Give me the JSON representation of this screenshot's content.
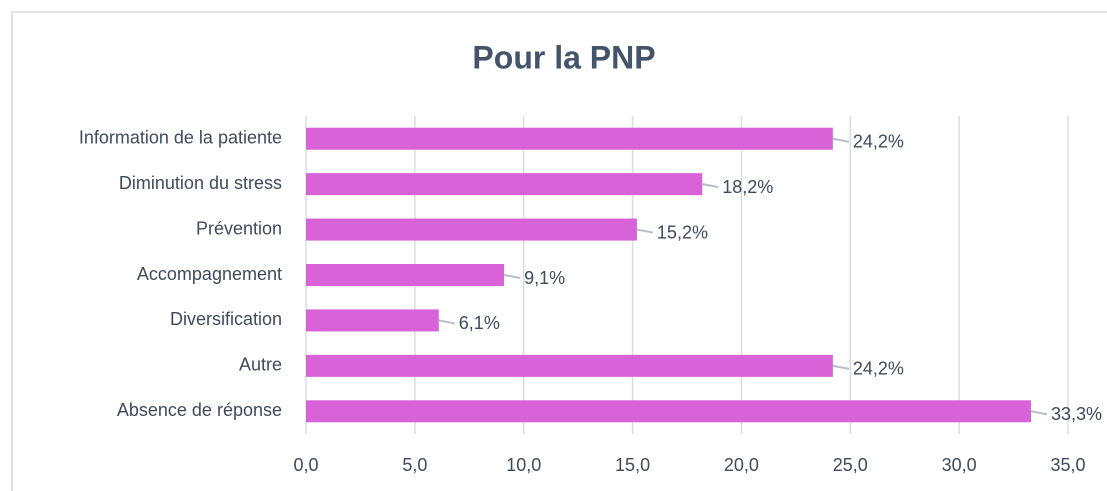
{
  "chart_data": {
    "type": "hbar",
    "title": "Pour la PNP",
    "categories": [
      "Information de la patiente",
      "Diminution du stress",
      "Prévention",
      "Accompagnement",
      "Diversification",
      "Autre",
      "Absence de réponse"
    ],
    "values": [
      24.2,
      18.2,
      15.2,
      9.1,
      6.1,
      24.2,
      33.3
    ],
    "value_labels": [
      "24,2%",
      "18,2%",
      "15,2%",
      "9,1%",
      "6,1%",
      "24,2%",
      "33,3%"
    ],
    "color": "#d862d8",
    "xlim": [
      0,
      35
    ],
    "xticks": [
      {
        "value": 0,
        "label": "0,0"
      },
      {
        "value": 5,
        "label": "5,0"
      },
      {
        "value": 10,
        "label": "10,0"
      },
      {
        "value": 15,
        "label": "15,0"
      },
      {
        "value": 20,
        "label": "20,0"
      },
      {
        "value": 25,
        "label": "25,0"
      },
      {
        "value": 30,
        "label": "30,0"
      },
      {
        "value": 35,
        "label": "35,0"
      }
    ],
    "grid": true
  }
}
